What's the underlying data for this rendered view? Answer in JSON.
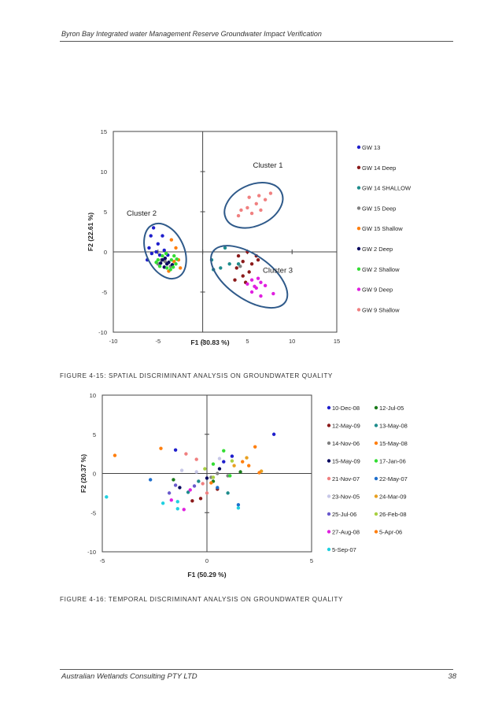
{
  "page": {
    "header": "Byron Bay Integrated water Management Reserve Groundwater Impact Verification",
    "footer_left": "Australian Wetlands Consulting PTY LTD",
    "page_number": "38",
    "figure1_caption": "FIGURE 4-15: SPATIAL DISCRIMINANT ANALYSIS ON GROUNDWATER QUALITY",
    "figure2_caption": "FIGURE 4-16: TEMPORAL DISCRIMINANT ANALYSIS ON GROUNDWATER QUALITY"
  },
  "chart_data": [
    {
      "type": "scatter",
      "xlabel": "F1 (30.83 %)",
      "ylabel": "F2 (22.61 %)",
      "xlim": [
        -10,
        15
      ],
      "ylim": [
        -10,
        15
      ],
      "xticks": [
        -10,
        -5,
        0,
        5,
        10,
        15
      ],
      "yticks": [
        -10,
        -5,
        0,
        5,
        10,
        15
      ],
      "grid": false,
      "legend": "right",
      "annotations": [
        "Cluster 1",
        "Cluster 2",
        "Cluster 3"
      ],
      "series": [
        {
          "name": "GW 13",
          "color": "#1f1fcc",
          "points": [
            [
              -5.5,
              3
            ],
            [
              -4.5,
              2
            ],
            [
              -5.8,
              2
            ],
            [
              -5,
              1
            ],
            [
              -6,
              0.5
            ],
            [
              -4.3,
              0.2
            ],
            [
              -5.2,
              0
            ],
            [
              -5.7,
              -0.2
            ],
            [
              -4.8,
              -0.4
            ],
            [
              -3.9,
              -0.4
            ],
            [
              -6.2,
              -1
            ]
          ]
        },
        {
          "name": "GW 14 Deep",
          "color": "#8b1a1a",
          "points": [
            [
              4,
              -0.5
            ],
            [
              5,
              0
            ],
            [
              6,
              -0.5
            ],
            [
              4.5,
              -1.2
            ],
            [
              3.8,
              -2
            ],
            [
              5.2,
              -2.5
            ],
            [
              4.5,
              -3
            ],
            [
              6.2,
              -1
            ],
            [
              3.6,
              -3.5
            ],
            [
              4.8,
              -3.8
            ],
            [
              5.5,
              -1.5
            ]
          ]
        },
        {
          "name": "GW 14 SHALLOW",
          "color": "#1e8c8c",
          "points": [
            [
              2.5,
              0.5
            ],
            [
              1,
              -1
            ],
            [
              3,
              -1.5
            ],
            [
              2,
              -2
            ],
            [
              4,
              -1.5
            ],
            [
              1.2,
              -2.2
            ]
          ]
        },
        {
          "name": "GW 15 Deep",
          "color": "#808080",
          "points": [
            [
              -5,
              -1.5
            ],
            [
              -4.2,
              -1.2
            ],
            [
              -4.6,
              -1
            ],
            [
              -3.6,
              -1.8
            ],
            [
              4.2,
              -1.8
            ]
          ]
        },
        {
          "name": "GW 15 Shallow",
          "color": "#ff7f0e",
          "points": [
            [
              -3.5,
              1.5
            ],
            [
              -3,
              0.5
            ],
            [
              -2.7,
              -1
            ],
            [
              -3.2,
              -1.2
            ],
            [
              -2.5,
              -2
            ],
            [
              -3.8,
              -2.4
            ]
          ]
        },
        {
          "name": "GW 2 Deep",
          "color": "#0a0a60",
          "points": [
            [
              -4.5,
              -1
            ],
            [
              -4,
              -1.5
            ],
            [
              -3.8,
              -1.3
            ],
            [
              -4.7,
              -1.4
            ],
            [
              -4.2,
              -0.8
            ],
            [
              -3.4,
              -1.6
            ],
            [
              -4.3,
              -1.9
            ]
          ]
        },
        {
          "name": "GW 2 Shallow",
          "color": "#33dd33",
          "points": [
            [
              -5,
              -1
            ],
            [
              -4.5,
              -0.5
            ],
            [
              -3.5,
              -1
            ],
            [
              -4,
              -2
            ],
            [
              -3,
              -1.5
            ],
            [
              -3.2,
              -0.5
            ],
            [
              -4.8,
              -1.8
            ],
            [
              -3.6,
              -2.2
            ],
            [
              -2.9,
              -0.9
            ],
            [
              -5.2,
              -1.3
            ],
            [
              -4.1,
              -0.2
            ],
            [
              -3.3,
              -1.9
            ]
          ]
        },
        {
          "name": "GW 9 Deep",
          "color": "#e020e0",
          "points": [
            [
              5.5,
              -3.5
            ],
            [
              6.5,
              -3.8
            ],
            [
              5,
              -4
            ],
            [
              6,
              -4.5
            ],
            [
              5.5,
              -5
            ],
            [
              6.5,
              -5.5
            ],
            [
              7,
              -4.2
            ],
            [
              7.9,
              -5.2
            ],
            [
              5.8,
              -4.3
            ],
            [
              6.2,
              -3.3
            ]
          ]
        },
        {
          "name": "GW 9 Shallow",
          "color": "#f08080",
          "points": [
            [
              4,
              4.5
            ],
            [
              5,
              5.5
            ],
            [
              5.5,
              4.8
            ],
            [
              6,
              6
            ],
            [
              6.5,
              5.2
            ],
            [
              7,
              6.5
            ],
            [
              5.2,
              6.8
            ],
            [
              6.3,
              7
            ],
            [
              7.6,
              7.3
            ],
            [
              4.3,
              5.2
            ]
          ]
        }
      ]
    },
    {
      "type": "scatter",
      "xlabel": "F1 (50.29 %)",
      "ylabel": "F2 (20.37 %)",
      "xlim": [
        -5,
        5
      ],
      "ylim": [
        -10,
        10
      ],
      "xticks": [
        -5,
        0,
        5
      ],
      "yticks": [
        -10,
        -5,
        0,
        5,
        10
      ],
      "grid": false,
      "legend": "right",
      "series": [
        {
          "name": "10-Dec-08",
          "color": "#1f1fcc",
          "points": [
            [
              3.2,
              5
            ],
            [
              0.8,
              1.5
            ],
            [
              1.2,
              2.2
            ],
            [
              -1.5,
              3
            ]
          ]
        },
        {
          "name": "12-Jul-05",
          "color": "#1a7a1a",
          "points": [
            [
              -1.6,
              -0.8
            ],
            [
              0.3,
              -1
            ],
            [
              1.6,
              0.2
            ]
          ]
        },
        {
          "name": "12-May-09",
          "color": "#8b1a1a",
          "points": [
            [
              -0.7,
              -3.5
            ],
            [
              0.5,
              -2
            ],
            [
              -0.3,
              -3.2
            ]
          ]
        },
        {
          "name": "13-May-08",
          "color": "#1e8c8c",
          "points": [
            [
              -0.9,
              -2.4
            ],
            [
              1,
              -2.5
            ],
            [
              -0.4,
              -1
            ]
          ]
        },
        {
          "name": "14-Nov-06",
          "color": "#808080",
          "points": [
            [
              0.5,
              0
            ],
            [
              0.2,
              -0.5
            ],
            [
              1,
              -0.3
            ]
          ]
        },
        {
          "name": "15-May-08",
          "color": "#ff7f0e",
          "points": [
            [
              -4.4,
              2.3
            ],
            [
              2,
              1
            ],
            [
              2.3,
              3.4
            ],
            [
              1.7,
              1.5
            ]
          ]
        },
        {
          "name": "15-May-09",
          "color": "#0a0a60",
          "points": [
            [
              -1.3,
              -1.8
            ],
            [
              0,
              -0.6
            ],
            [
              0.6,
              0.6
            ]
          ]
        },
        {
          "name": "17-Jan-06",
          "color": "#33dd33",
          "points": [
            [
              0.8,
              2.9
            ],
            [
              0.3,
              1.2
            ],
            [
              1.1,
              -0.3
            ]
          ]
        },
        {
          "name": "21-Nov-07",
          "color": "#f08080",
          "points": [
            [
              -1,
              2.5
            ],
            [
              -0.5,
              1.8
            ],
            [
              0,
              -2.5
            ],
            [
              -0.2,
              -1.3
            ]
          ]
        },
        {
          "name": "22-May-07",
          "color": "#1f6fcc",
          "points": [
            [
              -2.7,
              -0.8
            ],
            [
              1.5,
              -4
            ],
            [
              0.5,
              -1.8
            ]
          ]
        },
        {
          "name": "23-Nov-05",
          "color": "#c8c8e8",
          "points": [
            [
              -1.2,
              0.4
            ],
            [
              -0.5,
              0.2
            ],
            [
              0.6,
              1.9
            ]
          ]
        },
        {
          "name": "24-Mar-09",
          "color": "#e8a020",
          "points": [
            [
              2.6,
              0.3
            ],
            [
              1.9,
              2
            ],
            [
              1.3,
              1
            ]
          ]
        },
        {
          "name": "25-Jul-06",
          "color": "#6a5acd",
          "points": [
            [
              -1.5,
              -1.5
            ],
            [
              -1.8,
              -2.5
            ],
            [
              -0.6,
              -1.6
            ]
          ]
        },
        {
          "name": "26-Feb-08",
          "color": "#a8d040",
          "points": [
            [
              1.2,
              1.6
            ],
            [
              0.3,
              -0.5
            ],
            [
              -0.1,
              0.6
            ]
          ]
        },
        {
          "name": "27-Aug-08",
          "color": "#e020e0",
          "points": [
            [
              -1.1,
              -4.6
            ],
            [
              -1.7,
              -3.4
            ],
            [
              -0.8,
              -2.1
            ]
          ]
        },
        {
          "name": "5-Apr-06",
          "color": "#ff7f0e",
          "points": [
            [
              -2.2,
              3.2
            ],
            [
              0.2,
              -1.2
            ],
            [
              2.5,
              0.1
            ]
          ]
        },
        {
          "name": "5-Sep-07",
          "color": "#20d0e0",
          "points": [
            [
              -4.8,
              -3
            ],
            [
              -2.1,
              -3.8
            ],
            [
              -1.4,
              -3.6
            ],
            [
              1.5,
              -4.4
            ],
            [
              -1.4,
              -4.5
            ]
          ]
        }
      ]
    }
  ]
}
